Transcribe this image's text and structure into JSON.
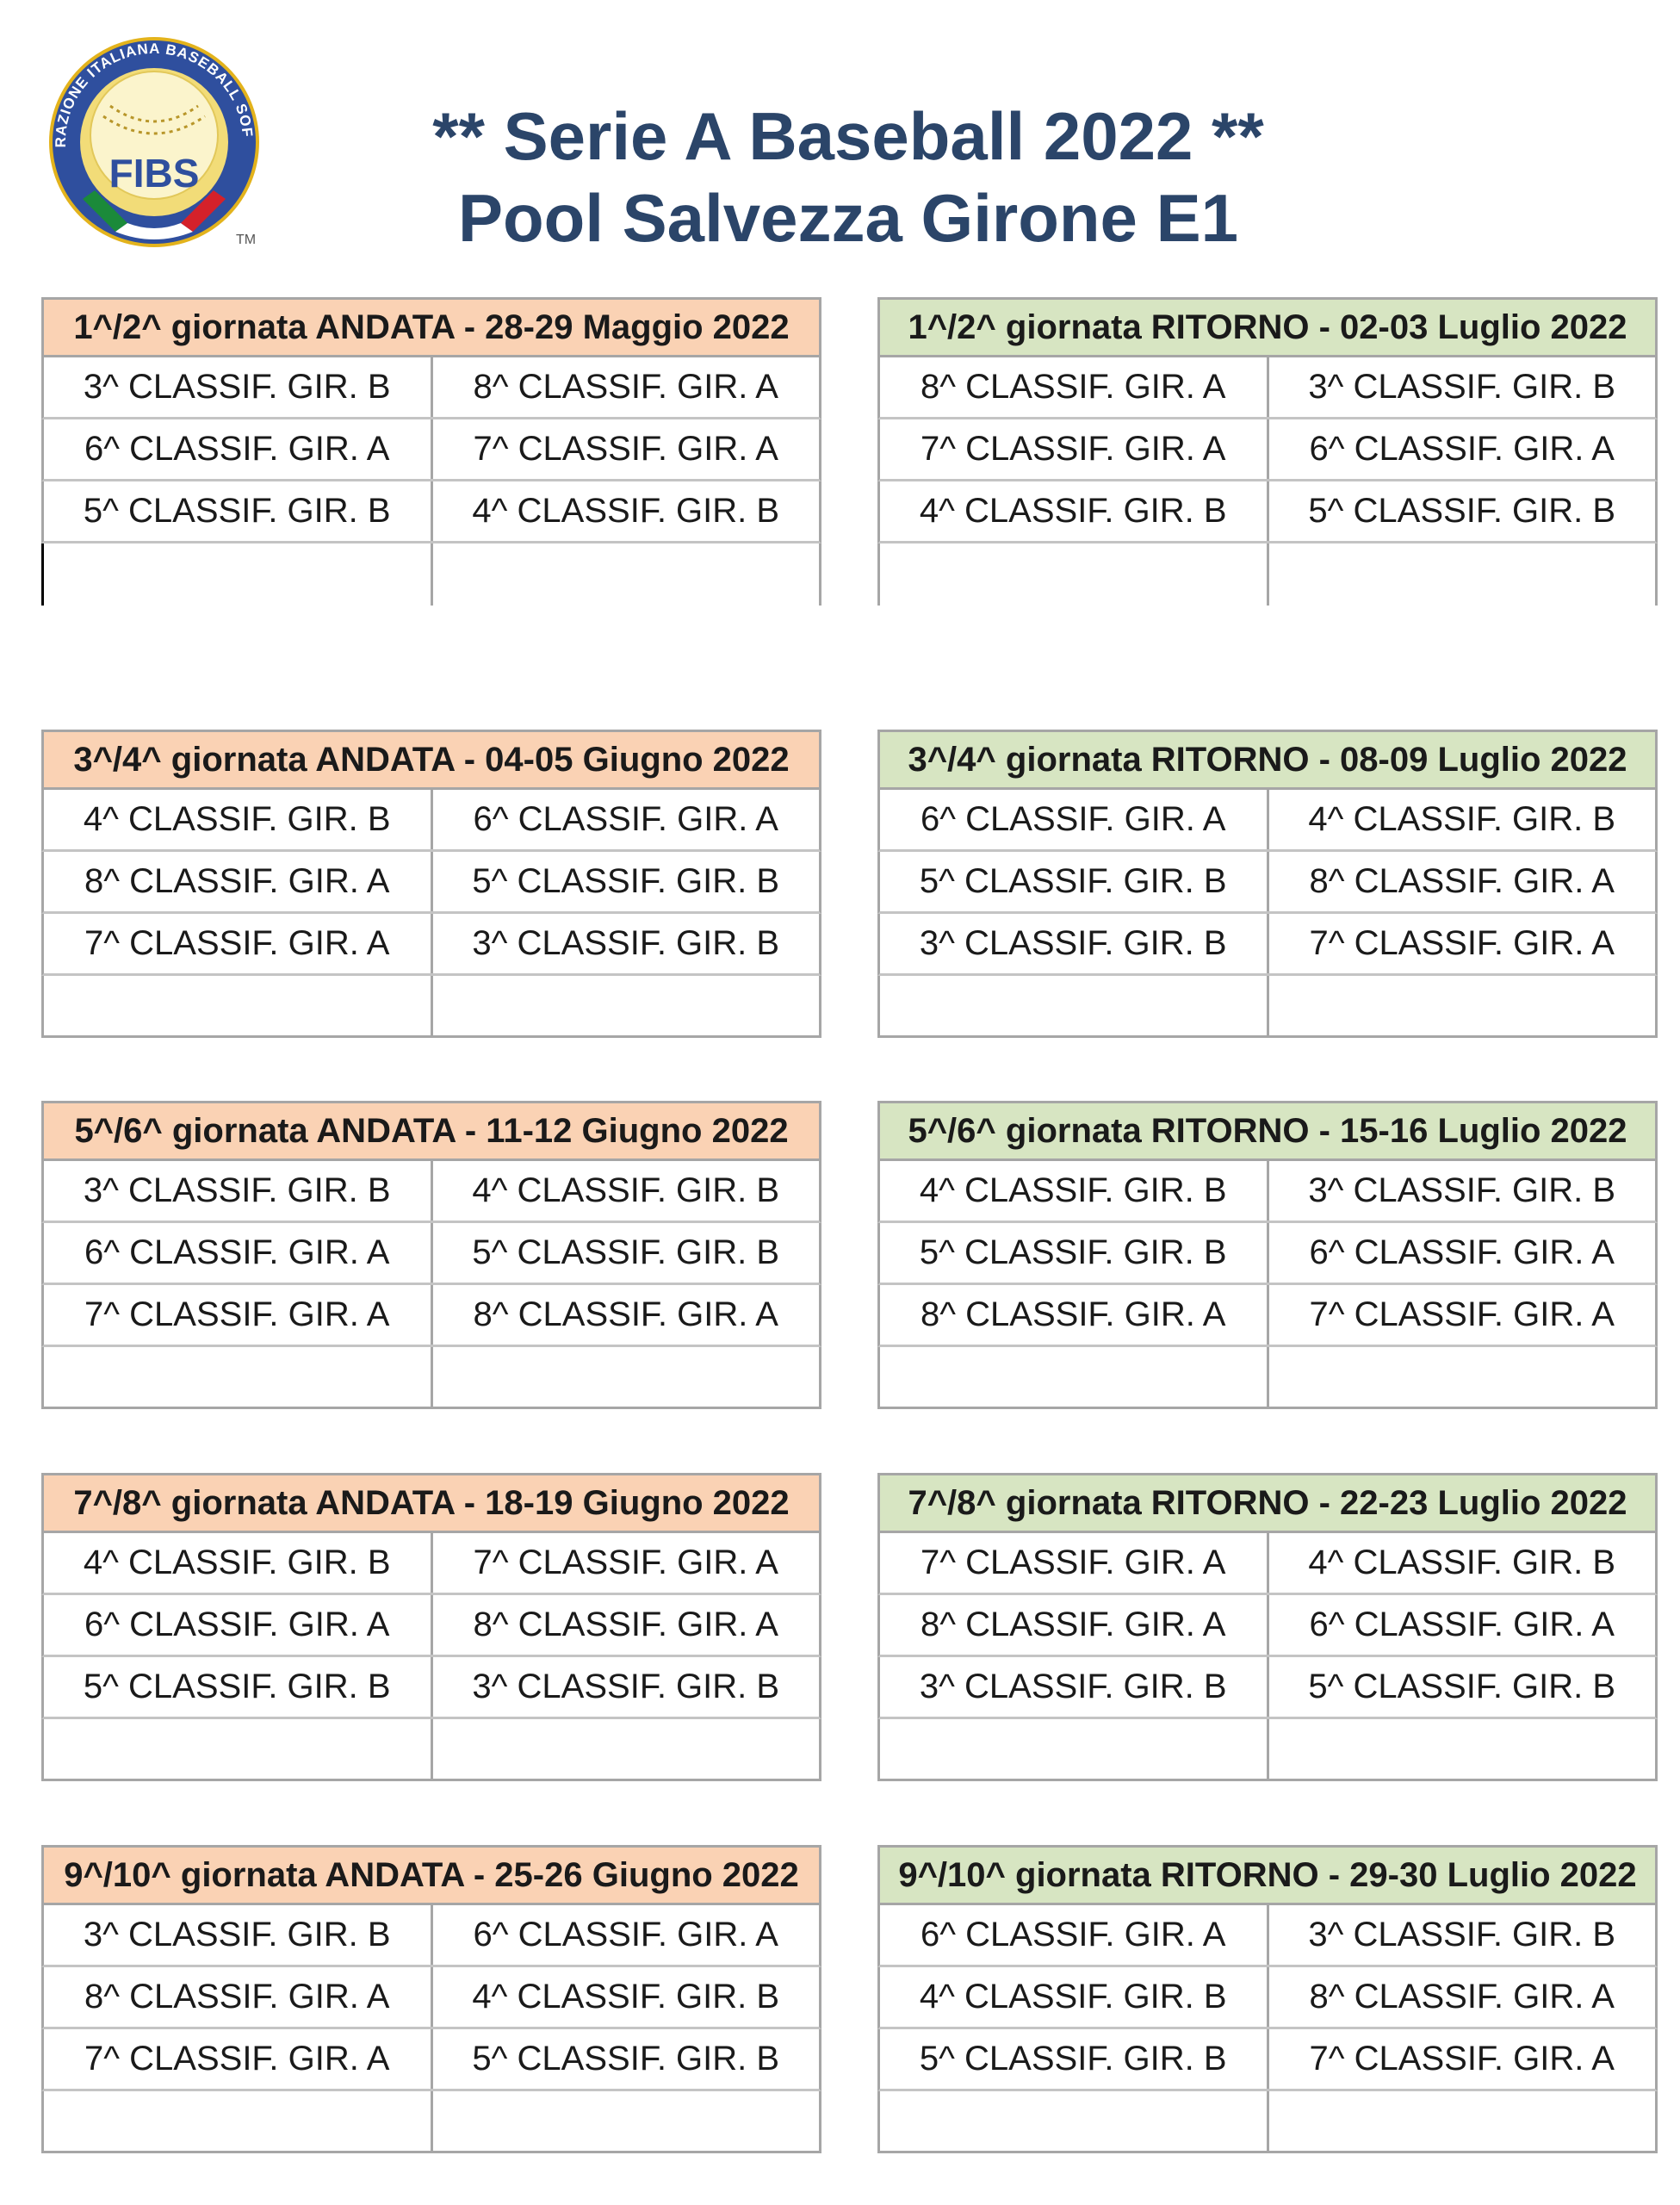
{
  "header": {
    "logo_text": "FIBS",
    "logo_ring_text": "FEDERAZIONE ITALIANA BASEBALL SOFTBALL",
    "logo_tm": "TM",
    "title_line1": "** Serie A Baseball 2022 **",
    "title_line2": "Pool Salvezza Girone E1"
  },
  "rounds": [
    {
      "andata": {
        "title": "1^/2^ giornata ANDATA - 28-29 Maggio 2022",
        "matches": [
          [
            "3^ CLASSIF. GIR. B",
            "8^ CLASSIF. GIR. A"
          ],
          [
            "6^ CLASSIF. GIR. A",
            "7^ CLASSIF. GIR. A"
          ],
          [
            "5^ CLASSIF. GIR. B",
            "4^ CLASSIF. GIR. B"
          ],
          [
            "",
            ""
          ]
        ]
      },
      "ritorno": {
        "title": "1^/2^ giornata RITORNO - 02-03 Luglio 2022",
        "matches": [
          [
            "8^ CLASSIF. GIR. A",
            "3^ CLASSIF. GIR. B"
          ],
          [
            "7^ CLASSIF. GIR. A",
            "6^ CLASSIF. GIR. A"
          ],
          [
            "4^ CLASSIF. GIR. B",
            "5^ CLASSIF. GIR. B"
          ],
          [
            "",
            ""
          ]
        ]
      }
    },
    {
      "andata": {
        "title": "3^/4^ giornata ANDATA - 04-05 Giugno 2022",
        "matches": [
          [
            "4^ CLASSIF. GIR. B",
            "6^ CLASSIF. GIR. A"
          ],
          [
            "8^ CLASSIF. GIR. A",
            "5^ CLASSIF. GIR. B"
          ],
          [
            "7^ CLASSIF. GIR. A",
            "3^ CLASSIF. GIR. B"
          ],
          [
            "",
            ""
          ]
        ]
      },
      "ritorno": {
        "title": "3^/4^ giornata RITORNO - 08-09  Luglio 2022",
        "matches": [
          [
            "6^ CLASSIF. GIR. A",
            "4^ CLASSIF. GIR. B"
          ],
          [
            "5^ CLASSIF. GIR. B",
            "8^ CLASSIF. GIR. A"
          ],
          [
            "3^ CLASSIF. GIR. B",
            "7^ CLASSIF. GIR. A"
          ],
          [
            "",
            ""
          ]
        ]
      }
    },
    {
      "andata": {
        "title": "5^/6^ giornata ANDATA - 11-12 Giugno 2022",
        "matches": [
          [
            "3^ CLASSIF. GIR. B",
            "4^ CLASSIF. GIR. B"
          ],
          [
            "6^ CLASSIF. GIR. A",
            "5^ CLASSIF. GIR. B"
          ],
          [
            "7^ CLASSIF. GIR. A",
            "8^ CLASSIF. GIR. A"
          ],
          [
            "",
            ""
          ]
        ]
      },
      "ritorno": {
        "title": "5^/6^ giornata RITORNO - 15-16 Luglio 2022",
        "matches": [
          [
            "4^ CLASSIF. GIR. B",
            "3^ CLASSIF. GIR. B"
          ],
          [
            "5^ CLASSIF. GIR. B",
            "6^ CLASSIF. GIR. A"
          ],
          [
            "8^ CLASSIF. GIR. A",
            "7^ CLASSIF. GIR. A"
          ],
          [
            "",
            ""
          ]
        ]
      }
    },
    {
      "andata": {
        "title": "7^/8^ giornata ANDATA - 18-19 Giugno 2022",
        "matches": [
          [
            "4^ CLASSIF. GIR. B",
            "7^ CLASSIF. GIR. A"
          ],
          [
            "6^ CLASSIF. GIR. A",
            "8^ CLASSIF. GIR. A"
          ],
          [
            "5^ CLASSIF. GIR. B",
            "3^ CLASSIF. GIR. B"
          ],
          [
            "",
            ""
          ]
        ]
      },
      "ritorno": {
        "title": "7^/8^ giornata RITORNO - 22-23 Luglio 2022",
        "matches": [
          [
            "7^ CLASSIF. GIR. A",
            "4^ CLASSIF. GIR. B"
          ],
          [
            "8^ CLASSIF. GIR. A",
            "6^ CLASSIF. GIR. A"
          ],
          [
            "3^ CLASSIF. GIR. B",
            "5^ CLASSIF. GIR. B"
          ],
          [
            "",
            ""
          ]
        ]
      }
    },
    {
      "andata": {
        "title": "9^/10^ giornata ANDATA - 25-26  Giugno 2022",
        "matches": [
          [
            "3^ CLASSIF. GIR. B",
            "6^ CLASSIF. GIR. A"
          ],
          [
            "8^ CLASSIF. GIR. A",
            "4^ CLASSIF. GIR. B"
          ],
          [
            "7^ CLASSIF. GIR. A",
            "5^ CLASSIF. GIR. B"
          ],
          [
            "",
            ""
          ]
        ]
      },
      "ritorno": {
        "title": "9^/10^ giornata RITORNO - 29-30 Luglio 2022",
        "matches": [
          [
            "6^ CLASSIF. GIR. A",
            "3^ CLASSIF. GIR. B"
          ],
          [
            "4^ CLASSIF. GIR. B",
            "8^ CLASSIF. GIR. A"
          ],
          [
            "5^ CLASSIF. GIR. B",
            "7^ CLASSIF. GIR. A"
          ],
          [
            "",
            ""
          ]
        ]
      }
    }
  ]
}
